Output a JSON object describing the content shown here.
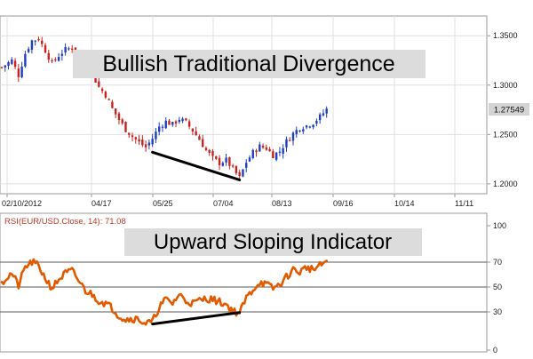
{
  "chart_data": [
    {
      "type": "candlestick",
      "title": "",
      "annotation": "Bullish Traditional Divergence",
      "x_tick_labels": [
        "02/10/2012",
        "04/17",
        "05/25",
        "07/04",
        "08/13",
        "09/16",
        "10/14",
        "11/11"
      ],
      "y_tick_labels": [
        "1.3500",
        "1.3000",
        "1.2500",
        "1.2000"
      ],
      "ylim": [
        1.19,
        1.37
      ],
      "last_price_label": "1.27549",
      "last_price": 1.27549,
      "colors": {
        "up": "#1f3fbf",
        "down": "#c8231e",
        "last_price_box": "#d4d4d4"
      },
      "close_path": [
        [
          0,
          1.318
        ],
        [
          3,
          1.325
        ],
        [
          5,
          1.31
        ],
        [
          7,
          1.332
        ],
        [
          9,
          1.345
        ],
        [
          11,
          1.347
        ],
        [
          13,
          1.335
        ],
        [
          15,
          1.322
        ],
        [
          17,
          1.33
        ],
        [
          19,
          1.336
        ],
        [
          21,
          1.338
        ],
        [
          23,
          1.331
        ],
        [
          25,
          1.322
        ],
        [
          27,
          1.311
        ],
        [
          29,
          1.298
        ],
        [
          31,
          1.29
        ],
        [
          33,
          1.276
        ],
        [
          35,
          1.265
        ],
        [
          37,
          1.255
        ],
        [
          39,
          1.248
        ],
        [
          41,
          1.242
        ],
        [
          43,
          1.237
        ],
        [
          45,
          1.246
        ],
        [
          47,
          1.258
        ],
        [
          49,
          1.263
        ],
        [
          51,
          1.26
        ],
        [
          53,
          1.266
        ],
        [
          55,
          1.262
        ],
        [
          57,
          1.254
        ],
        [
          59,
          1.245
        ],
        [
          61,
          1.234
        ],
        [
          63,
          1.226
        ],
        [
          65,
          1.221
        ],
        [
          67,
          1.224
        ],
        [
          69,
          1.215
        ],
        [
          71,
          1.206
        ],
        [
          73,
          1.222
        ],
        [
          75,
          1.232
        ],
        [
          77,
          1.238
        ],
        [
          79,
          1.236
        ],
        [
          81,
          1.229
        ],
        [
          83,
          1.233
        ],
        [
          85,
          1.243
        ],
        [
          87,
          1.251
        ],
        [
          89,
          1.257
        ],
        [
          91,
          1.259
        ],
        [
          93,
          1.262
        ],
        [
          95,
          1.268
        ],
        [
          97,
          1.27549
        ]
      ],
      "trendline": [
        [
          45,
          1.232
        ],
        [
          71,
          1.204
        ]
      ]
    },
    {
      "type": "line",
      "title": "",
      "series_label": "RSI(EUR/USD.Close, 14): 71.08",
      "annotation": "Upward Sloping Indicator",
      "y_tick_labels": [
        "100",
        "70",
        "50",
        "30",
        "0"
      ],
      "levels": [
        70,
        50,
        30
      ],
      "ylim": [
        0,
        100
      ],
      "colors": {
        "line": "#e25a00",
        "series_label": "#c0392b"
      },
      "values": [
        [
          0,
          54
        ],
        [
          3,
          61
        ],
        [
          5,
          51
        ],
        [
          7,
          66
        ],
        [
          9,
          70
        ],
        [
          11,
          67
        ],
        [
          13,
          57
        ],
        [
          15,
          49
        ],
        [
          17,
          56
        ],
        [
          19,
          61
        ],
        [
          21,
          63
        ],
        [
          23,
          55
        ],
        [
          25,
          47
        ],
        [
          27,
          44
        ],
        [
          29,
          39
        ],
        [
          31,
          37
        ],
        [
          33,
          33
        ],
        [
          35,
          27
        ],
        [
          37,
          24
        ],
        [
          39,
          25
        ],
        [
          41,
          24
        ],
        [
          43,
          21
        ],
        [
          45,
          22
        ],
        [
          47,
          34
        ],
        [
          49,
          40
        ],
        [
          51,
          37
        ],
        [
          53,
          44
        ],
        [
          55,
          39
        ],
        [
          57,
          37
        ],
        [
          59,
          39
        ],
        [
          61,
          41
        ],
        [
          63,
          40
        ],
        [
          65,
          38
        ],
        [
          67,
          36
        ],
        [
          69,
          31
        ],
        [
          71,
          29
        ],
        [
          73,
          41
        ],
        [
          75,
          48
        ],
        [
          77,
          54
        ],
        [
          79,
          52
        ],
        [
          81,
          49
        ],
        [
          83,
          52
        ],
        [
          85,
          58
        ],
        [
          87,
          64
        ],
        [
          89,
          62
        ],
        [
          91,
          66
        ],
        [
          93,
          64
        ],
        [
          95,
          67
        ],
        [
          97,
          71.08
        ]
      ],
      "trendline": [
        [
          45,
          20.5
        ],
        [
          71,
          29.5
        ]
      ]
    }
  ]
}
